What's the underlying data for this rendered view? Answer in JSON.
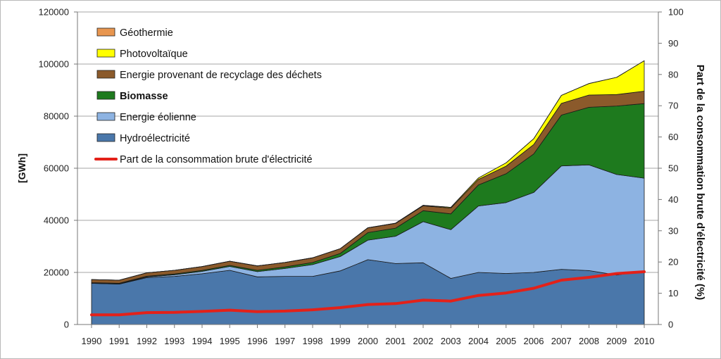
{
  "chart_data": {
    "type": "area",
    "x": [
      1990,
      1991,
      1992,
      1993,
      1994,
      1995,
      1996,
      1997,
      1998,
      1999,
      2000,
      2001,
      2002,
      2003,
      2004,
      2005,
      2006,
      2007,
      2008,
      2009,
      2010
    ],
    "stack_order": [
      "Hydroélectricité",
      "Energie éolienne",
      "Biomasse",
      "Energie provenant de recyclage des déchets",
      "Photovoltaïque",
      "Géothermie"
    ],
    "series": [
      {
        "name": "Hydroélectricité",
        "color": "#4a77aa",
        "values": [
          15800,
          15500,
          18000,
          18500,
          19500,
          20800,
          18300,
          18500,
          18500,
          20600,
          24900,
          23400,
          23700,
          17700,
          20000,
          19600,
          20000,
          21200,
          20700,
          19000,
          20600
        ]
      },
      {
        "name": "Energie éolienne",
        "color": "#8db3e2",
        "values": [
          70,
          100,
          300,
          600,
          900,
          1500,
          2000,
          3000,
          4500,
          5500,
          7500,
          10500,
          15800,
          18700,
          25500,
          27200,
          30700,
          39700,
          40600,
          38600,
          35600
        ]
      },
      {
        "name": "Biomasse",
        "color": "#1e7a1e",
        "values": [
          200,
          230,
          250,
          300,
          350,
          400,
          500,
          600,
          800,
          1200,
          2900,
          3100,
          4200,
          6100,
          8100,
          11100,
          14800,
          19500,
          22100,
          26300,
          28600
        ]
      },
      {
        "name": "Energie provenant de recyclage des déchets",
        "color": "#8b5a2b",
        "values": [
          1200,
          1200,
          1300,
          1400,
          1500,
          1600,
          1700,
          1700,
          1800,
          1800,
          1800,
          1800,
          1900,
          2200,
          2100,
          2900,
          3600,
          4500,
          4700,
          4400,
          4800
        ]
      },
      {
        "name": "Photovoltaïque",
        "color": "#ffff00",
        "values": [
          1,
          2,
          3,
          6,
          8,
          11,
          16,
          26,
          35,
          30,
          60,
          116,
          188,
          313,
          557,
          1282,
          2220,
          3075,
          4420,
          6583,
          11683
        ]
      },
      {
        "name": "Géothermie",
        "color": "#e8964f",
        "values": [
          0,
          0,
          0,
          0,
          0,
          0,
          0,
          0,
          0,
          0,
          0,
          0,
          0,
          0,
          0,
          0.2,
          0.4,
          0.4,
          17.6,
          18.8,
          27.7
        ]
      }
    ],
    "line_series": {
      "name": "Part de la consommation brute d'électricité",
      "color": "#e32119",
      "axis": "right",
      "values": [
        3.1,
        3.1,
        3.8,
        3.9,
        4.2,
        4.6,
        4.1,
        4.3,
        4.7,
        5.4,
        6.4,
        6.7,
        7.8,
        7.5,
        9.3,
        10.1,
        11.6,
        14.2,
        15.1,
        16.3,
        16.9
      ]
    },
    "ylabel": "[GWh]",
    "ylabel_right": "Part de la consommation brute d'électricité (%)",
    "ylim": [
      0,
      120000
    ],
    "ylim_right": [
      0,
      100
    ],
    "yticks": [
      0,
      20000,
      40000,
      60000,
      80000,
      100000,
      120000
    ],
    "yticks_right": [
      0,
      10,
      20,
      30,
      40,
      50,
      60,
      70,
      80,
      90,
      100
    ],
    "grid": true,
    "legend_position": "top-left",
    "legend": [
      {
        "label": "Géothermie",
        "color": "#e8964f",
        "kind": "box",
        "bold": false
      },
      {
        "label": "Photovoltaïque",
        "color": "#ffff00",
        "kind": "box",
        "bold": false
      },
      {
        "label": "Energie provenant de recyclage des déchets",
        "color": "#8b5a2b",
        "kind": "box",
        "bold": false
      },
      {
        "label": "Biomasse",
        "color": "#1e7a1e",
        "kind": "box",
        "bold": true
      },
      {
        "label": "Energie éolienne",
        "color": "#8db3e2",
        "kind": "box",
        "bold": false
      },
      {
        "label": "Hydroélectricité",
        "color": "#4a77aa",
        "kind": "box",
        "bold": false
      },
      {
        "label": "Part de la consommation brute d'électricité",
        "color": "#e32119",
        "kind": "line",
        "bold": false
      }
    ]
  }
}
